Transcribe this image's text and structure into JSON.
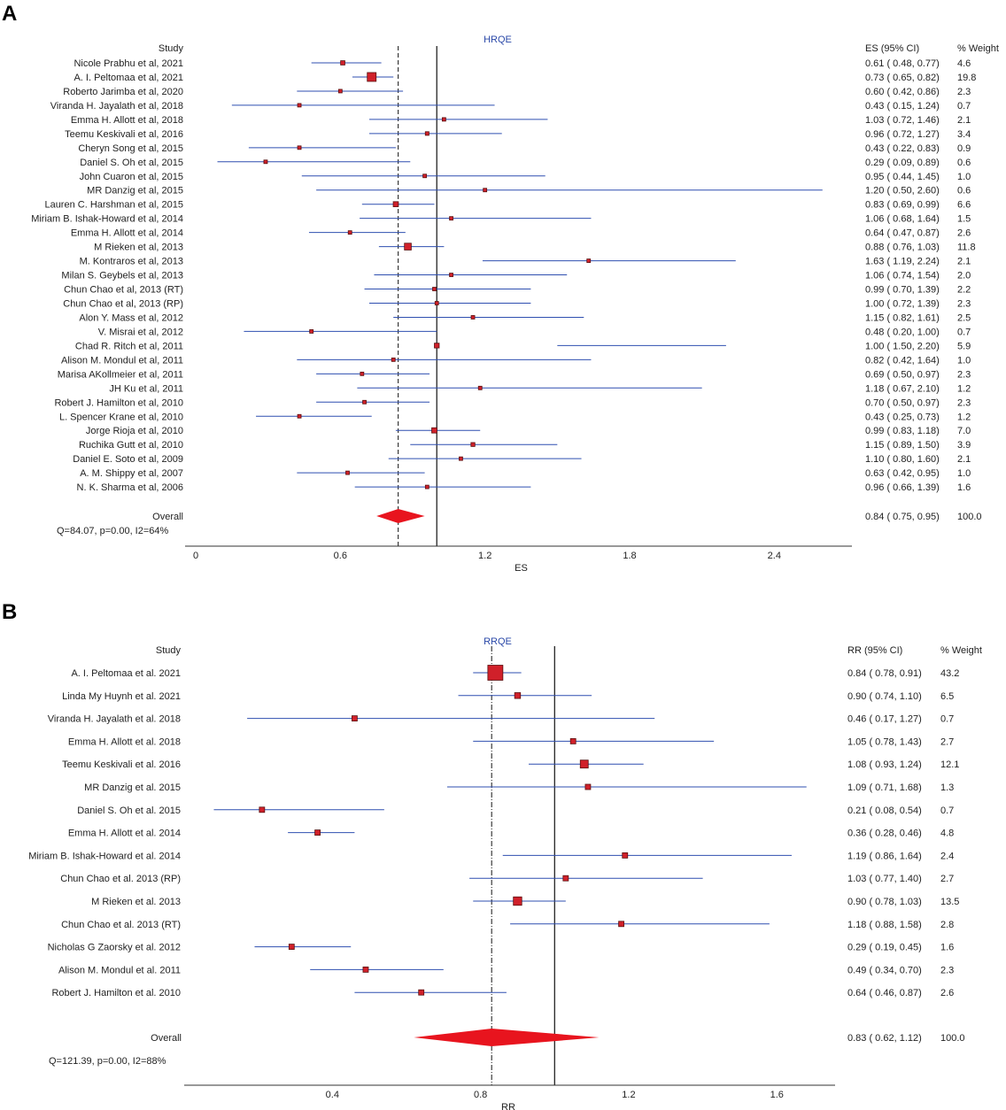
{
  "panels": [
    {
      "letter": "A"
    },
    {
      "letter": "B"
    }
  ],
  "chart_data": [
    {
      "type": "forest",
      "panel": "A",
      "title": "HRQE",
      "study_header": "Study",
      "ci_header": "ES (95% CI)",
      "weight_header": "% Weight",
      "xlabel": "ES",
      "xlim": [
        0,
        2.7
      ],
      "xticks": [
        0,
        0.6,
        1.2,
        1.8,
        2.4
      ],
      "xtick_labels": [
        "0",
        "0.6",
        "1.2",
        "1.8",
        "2.4"
      ],
      "null_line": 1.0,
      "pooled_line": 0.84,
      "studies": [
        {
          "name": "Nicole Prabhu et al, 2021",
          "est": 0.61,
          "lo": 0.48,
          "hi": 0.77,
          "ci_text": "0.61  ( 0.48,  0.77)",
          "weight": "4.6"
        },
        {
          "name": "A. I. Peltomaa et al, 2021",
          "est": 0.73,
          "lo": 0.65,
          "hi": 0.82,
          "ci_text": "0.73  ( 0.65,  0.82)",
          "weight": "19.8"
        },
        {
          "name": "Roberto Jarimba et al, 2020",
          "est": 0.6,
          "lo": 0.42,
          "hi": 0.86,
          "ci_text": "0.60  ( 0.42,  0.86)",
          "weight": "2.3"
        },
        {
          "name": "Viranda H. Jayalath et al, 2018",
          "est": 0.43,
          "lo": 0.15,
          "hi": 1.24,
          "ci_text": "0.43  ( 0.15,  1.24)",
          "weight": "0.7"
        },
        {
          "name": "Emma H. Allott et al, 2018",
          "est": 1.03,
          "lo": 0.72,
          "hi": 1.46,
          "ci_text": "1.03  ( 0.72,  1.46)",
          "weight": "2.1"
        },
        {
          "name": "Teemu Keskivali et al, 2016",
          "est": 0.96,
          "lo": 0.72,
          "hi": 1.27,
          "ci_text": "0.96  ( 0.72,  1.27)",
          "weight": "3.4"
        },
        {
          "name": "Cheryn Song et al, 2015",
          "est": 0.43,
          "lo": 0.22,
          "hi": 0.83,
          "ci_text": "0.43  ( 0.22,  0.83)",
          "weight": "0.9"
        },
        {
          "name": "Daniel S. Oh et al, 2015",
          "est": 0.29,
          "lo": 0.09,
          "hi": 0.89,
          "ci_text": "0.29  ( 0.09,  0.89)",
          "weight": "0.6"
        },
        {
          "name": "John Cuaron et al, 2015",
          "est": 0.95,
          "lo": 0.44,
          "hi": 1.45,
          "ci_text": "0.95  ( 0.44,  1.45)",
          "weight": "1.0"
        },
        {
          "name": "MR Danzig et al, 2015",
          "est": 1.2,
          "lo": 0.5,
          "hi": 2.6,
          "ci_text": "1.20  ( 0.50,  2.60)",
          "weight": "0.6"
        },
        {
          "name": "Lauren C. Harshman et al, 2015",
          "est": 0.83,
          "lo": 0.69,
          "hi": 0.99,
          "ci_text": "0.83  ( 0.69,  0.99)",
          "weight": "6.6"
        },
        {
          "name": "Miriam B. Ishak-Howard et al, 2014",
          "est": 1.06,
          "lo": 0.68,
          "hi": 1.64,
          "ci_text": "1.06  ( 0.68,  1.64)",
          "weight": "1.5"
        },
        {
          "name": "Emma H. Allott et al, 2014",
          "est": 0.64,
          "lo": 0.47,
          "hi": 0.87,
          "ci_text": "0.64  ( 0.47,  0.87)",
          "weight": "2.6"
        },
        {
          "name": "M Rieken et al, 2013",
          "est": 0.88,
          "lo": 0.76,
          "hi": 1.03,
          "ci_text": "0.88  ( 0.76,  1.03)",
          "weight": "11.8"
        },
        {
          "name": "M. Kontraros et al, 2013",
          "est": 1.63,
          "lo": 1.19,
          "hi": 2.24,
          "ci_text": "1.63  ( 1.19,  2.24)",
          "weight": "2.1"
        },
        {
          "name": "Milan S. Geybels et al, 2013",
          "est": 1.06,
          "lo": 0.74,
          "hi": 1.54,
          "ci_text": "1.06  ( 0.74,  1.54)",
          "weight": "2.0"
        },
        {
          "name": "Chun Chao et al, 2013 (RT)",
          "est": 0.99,
          "lo": 0.7,
          "hi": 1.39,
          "ci_text": "0.99  ( 0.70,  1.39)",
          "weight": "2.2"
        },
        {
          "name": "Chun Chao et al, 2013 (RP)",
          "est": 1.0,
          "lo": 0.72,
          "hi": 1.39,
          "ci_text": "1.00  ( 0.72,  1.39)",
          "weight": "2.3"
        },
        {
          "name": "Alon Y. Mass et al, 2012",
          "est": 1.15,
          "lo": 0.82,
          "hi": 1.61,
          "ci_text": "1.15  ( 0.82,  1.61)",
          "weight": "2.5"
        },
        {
          "name": "V. Misrai et al, 2012",
          "est": 0.48,
          "lo": 0.2,
          "hi": 1.0,
          "ci_text": "0.48  ( 0.20,  1.00)",
          "weight": "0.7"
        },
        {
          "name": "Chad R. Ritch et al, 2011",
          "est": 1.0,
          "lo": 1.5,
          "hi": 2.2,
          "ci_text": "1.00  ( 1.50,  2.20)",
          "weight": "5.9"
        },
        {
          "name": "Alison M. Mondul et al, 2011",
          "est": 0.82,
          "lo": 0.42,
          "hi": 1.64,
          "ci_text": "0.82  ( 0.42,  1.64)",
          "weight": "1.0"
        },
        {
          "name": "Marisa AKollmeier et al, 2011",
          "est": 0.69,
          "lo": 0.5,
          "hi": 0.97,
          "ci_text": "0.69  ( 0.50,  0.97)",
          "weight": "2.3"
        },
        {
          "name": "JH Ku et al, 2011",
          "est": 1.18,
          "lo": 0.67,
          "hi": 2.1,
          "ci_text": "1.18  ( 0.67,  2.10)",
          "weight": "1.2"
        },
        {
          "name": "Robert J. Hamilton et al, 2010",
          "est": 0.7,
          "lo": 0.5,
          "hi": 0.97,
          "ci_text": "0.70  ( 0.50,  0.97)",
          "weight": "2.3"
        },
        {
          "name": "L. Spencer Krane et al, 2010",
          "est": 0.43,
          "lo": 0.25,
          "hi": 0.73,
          "ci_text": "0.43  ( 0.25,  0.73)",
          "weight": "1.2"
        },
        {
          "name": "Jorge Rioja et al, 2010",
          "est": 0.99,
          "lo": 0.83,
          "hi": 1.18,
          "ci_text": "0.99  ( 0.83,  1.18)",
          "weight": "7.0"
        },
        {
          "name": "Ruchika Gutt et al, 2010",
          "est": 1.15,
          "lo": 0.89,
          "hi": 1.5,
          "ci_text": "1.15  ( 0.89,  1.50)",
          "weight": "3.9"
        },
        {
          "name": "Daniel E. Soto et al, 2009",
          "est": 1.1,
          "lo": 0.8,
          "hi": 1.6,
          "ci_text": "1.10  ( 0.80,  1.60)",
          "weight": "2.1"
        },
        {
          "name": "A. M. Shippy et al, 2007",
          "est": 0.63,
          "lo": 0.42,
          "hi": 0.95,
          "ci_text": "0.63  ( 0.42,  0.95)",
          "weight": "1.0"
        },
        {
          "name": "N. K. Sharma et al, 2006",
          "est": 0.96,
          "lo": 0.66,
          "hi": 1.39,
          "ci_text": "0.96  ( 0.66,  1.39)",
          "weight": "1.6"
        }
      ],
      "overall": {
        "label": "Overall",
        "est": 0.84,
        "lo": 0.75,
        "hi": 0.95,
        "ci_text": "0.84  ( 0.75,  0.95)",
        "weight": "100.0"
      },
      "heterogeneity": "Q=84.07, p=0.00, I2=64%"
    },
    {
      "type": "forest",
      "panel": "B",
      "title": "RRQE",
      "study_header": "Study",
      "ci_header": "RR (95% CI)",
      "weight_header": "% Weight",
      "xlabel": "RR",
      "xlim": [
        0.0,
        1.75
      ],
      "xticks": [
        0.4,
        0.8,
        1.2,
        1.6
      ],
      "xtick_labels": [
        "0.4",
        "0.8",
        "1.2",
        "1.6"
      ],
      "null_line": 1.0,
      "pooled_line": 0.83,
      "studies": [
        {
          "name": "A. I. Peltomaa et al. 2021",
          "est": 0.84,
          "lo": 0.78,
          "hi": 0.91,
          "ci_text": "0.84  ( 0.78,  0.91)",
          "weight": "43.2"
        },
        {
          "name": "Linda My Huynh et al. 2021",
          "est": 0.9,
          "lo": 0.74,
          "hi": 1.1,
          "ci_text": "0.90  ( 0.74,  1.10)",
          "weight": "6.5"
        },
        {
          "name": "Viranda H. Jayalath et al. 2018",
          "est": 0.46,
          "lo": 0.17,
          "hi": 1.27,
          "ci_text": "0.46  ( 0.17,  1.27)",
          "weight": "0.7"
        },
        {
          "name": "Emma H. Allott et al. 2018",
          "est": 1.05,
          "lo": 0.78,
          "hi": 1.43,
          "ci_text": "1.05  ( 0.78,  1.43)",
          "weight": "2.7"
        },
        {
          "name": "Teemu Keskivali et al. 2016",
          "est": 1.08,
          "lo": 0.93,
          "hi": 1.24,
          "ci_text": "1.08  ( 0.93,  1.24)",
          "weight": "12.1"
        },
        {
          "name": "MR Danzig et al. 2015",
          "est": 1.09,
          "lo": 0.71,
          "hi": 1.68,
          "ci_text": "1.09  ( 0.71,  1.68)",
          "weight": "1.3"
        },
        {
          "name": "Daniel S. Oh et al. 2015",
          "est": 0.21,
          "lo": 0.08,
          "hi": 0.54,
          "ci_text": "0.21  ( 0.08,  0.54)",
          "weight": "0.7"
        },
        {
          "name": "Emma H. Allott et al. 2014",
          "est": 0.36,
          "lo": 0.28,
          "hi": 0.46,
          "ci_text": "0.36  ( 0.28,  0.46)",
          "weight": "4.8"
        },
        {
          "name": "Miriam B. Ishak-Howard et al. 2014",
          "est": 1.19,
          "lo": 0.86,
          "hi": 1.64,
          "ci_text": "1.19  ( 0.86,  1.64)",
          "weight": "2.4"
        },
        {
          "name": "Chun Chao et al. 2013 (RP)",
          "est": 1.03,
          "lo": 0.77,
          "hi": 1.4,
          "ci_text": "1.03  ( 0.77,  1.40)",
          "weight": "2.7"
        },
        {
          "name": "M Rieken et al. 2013",
          "est": 0.9,
          "lo": 0.78,
          "hi": 1.03,
          "ci_text": "0.90  ( 0.78,  1.03)",
          "weight": "13.5"
        },
        {
          "name": "Chun Chao et al. 2013 (RT)",
          "est": 1.18,
          "lo": 0.88,
          "hi": 1.58,
          "ci_text": "1.18  ( 0.88,  1.58)",
          "weight": "2.8"
        },
        {
          "name": "Nicholas G Zaorsky et al. 2012",
          "est": 0.29,
          "lo": 0.19,
          "hi": 0.45,
          "ci_text": "0.29  ( 0.19,  0.45)",
          "weight": "1.6"
        },
        {
          "name": "Alison M. Mondul et al. 2011",
          "est": 0.49,
          "lo": 0.34,
          "hi": 0.7,
          "ci_text": "0.49  ( 0.34,  0.70)",
          "weight": "2.3"
        },
        {
          "name": "Robert J. Hamilton et al. 2010",
          "est": 0.64,
          "lo": 0.46,
          "hi": 0.87,
          "ci_text": "0.64  ( 0.46,  0.87)",
          "weight": "2.6"
        }
      ],
      "overall": {
        "label": "Overall",
        "est": 0.83,
        "lo": 0.62,
        "hi": 1.12,
        "ci_text": "0.83  ( 0.62,  1.12)",
        "weight": "100.0"
      },
      "heterogeneity": "Q=121.39, p=0.00, I2=88%"
    }
  ],
  "colors": {
    "ci_line": "#2f4fb0",
    "marker_fill": "#d0202a",
    "marker_stroke": "#5a1010",
    "diamond": "#e8141e",
    "axis": "#333333",
    "title": "#2a48a8"
  }
}
